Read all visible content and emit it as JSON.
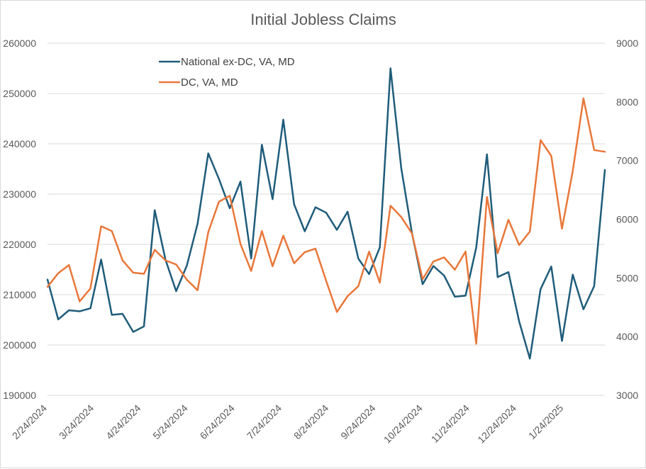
{
  "chart_data": {
    "type": "line",
    "title": "Initial Jobless Claims",
    "xlabel": "",
    "ylabel": "",
    "y_left": {
      "lim": [
        190000,
        260000
      ],
      "ticks": [
        "190000",
        "200000",
        "210000",
        "220000",
        "230000",
        "240000",
        "250000",
        "260000"
      ]
    },
    "y_right": {
      "lim": [
        3000,
        9000
      ],
      "ticks": [
        "3000",
        "4000",
        "5000",
        "6000",
        "7000",
        "8000",
        "9000"
      ]
    },
    "x_tick_labels": [
      "2/24/2024",
      "3/24/2024",
      "4/24/2024",
      "5/24/2024",
      "6/24/2024",
      "7/24/2024",
      "8/24/2024",
      "9/24/2024",
      "10/24/2024",
      "11/24/2024",
      "12/24/2024",
      "1/24/2025"
    ],
    "grid": true,
    "legend_position": "top-left",
    "series": [
      {
        "name": "National ex-DC, VA, MD",
        "axis": "left",
        "color": "#1f5c7a",
        "values": [
          213000,
          205100,
          206900,
          206700,
          207300,
          217000,
          206000,
          206200,
          202600,
          203700,
          226800,
          217000,
          210700,
          215800,
          224100,
          238100,
          233000,
          227200,
          232500,
          217200,
          239800,
          229000,
          244800,
          228000,
          222600,
          227400,
          226300,
          222900,
          226500,
          217200,
          214100,
          219400,
          255000,
          235200,
          222300,
          212100,
          215700,
          213800,
          209600,
          209800,
          219400,
          237900,
          213500,
          214500,
          204700,
          197300,
          211100,
          215600,
          200800,
          214000,
          207100,
          211700,
          234800
        ]
      },
      {
        "name": "DC, VA, MD",
        "axis": "right",
        "color": "#e8773a",
        "values": [
          4850,
          5080,
          5220,
          4600,
          4820,
          5880,
          5800,
          5300,
          5090,
          5070,
          5480,
          5300,
          5230,
          4970,
          4790,
          5780,
          6300,
          6400,
          5580,
          5120,
          5800,
          5200,
          5720,
          5250,
          5440,
          5500,
          4950,
          4420,
          4690,
          4860,
          5450,
          4920,
          6230,
          6040,
          5760,
          4980,
          5280,
          5350,
          5140,
          5450,
          3880,
          6380,
          5420,
          5990,
          5560,
          5790,
          7350,
          7080,
          5840,
          6820,
          8060,
          7180,
          7150
        ]
      }
    ]
  }
}
